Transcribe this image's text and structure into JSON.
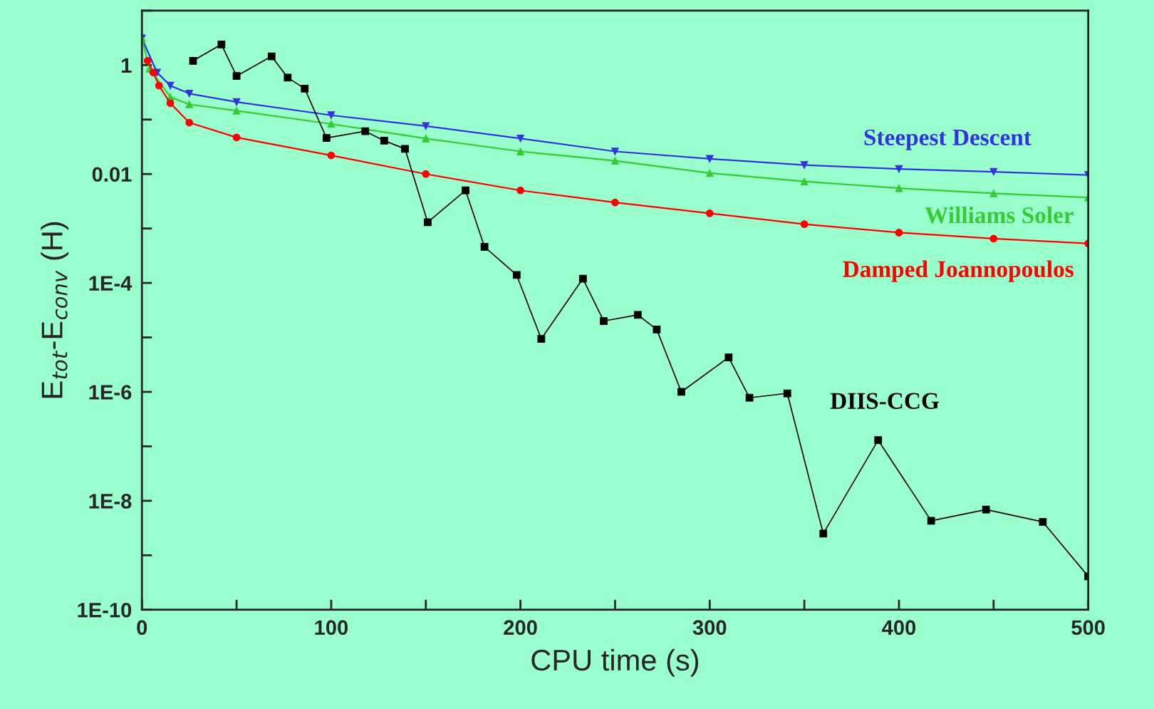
{
  "chart_data": {
    "type": "line",
    "xlabel": "CPU time (s)",
    "ylabel": "E$_{tot}$-E$_{conv}$ (H)",
    "log": "y",
    "grid": false,
    "legend": false,
    "xlim": [
      0,
      500
    ],
    "ylim": [
      1e-10,
      10
    ],
    "xticks": [
      0,
      {
        "value": 50,
        "label": null
      },
      100,
      {
        "value": 150,
        "label": null
      },
      200,
      {
        "value": 250,
        "label": null
      },
      300,
      {
        "value": 350,
        "label": null
      },
      400,
      {
        "value": 450,
        "label": null
      },
      500
    ],
    "yticks": [
      {
        "value": 1e-10,
        "label": "1E-10"
      },
      {
        "value": 1e-09,
        "label": null
      },
      {
        "value": 1e-08,
        "label": "1E-8"
      },
      {
        "value": 1e-07,
        "label": null
      },
      {
        "value": 1e-06,
        "label": "1E-6"
      },
      {
        "value": 1e-05,
        "label": null
      },
      {
        "value": 0.0001,
        "label": "1E-4"
      },
      {
        "value": 0.001,
        "label": null
      },
      0.01,
      {
        "value": 0.1,
        "label": null
      },
      1,
      {
        "value": 10,
        "label": null
      }
    ],
    "series": [
      {
        "name": "Steepest Descent",
        "color": "#3333dd",
        "marker": "triangle_down",
        "x": [
          0,
          8,
          15,
          25,
          50,
          100,
          150,
          200,
          250,
          300,
          350,
          400,
          450,
          500
        ],
        "values": [
          3.1,
          0.73,
          0.42,
          0.3,
          0.21,
          0.12,
          0.076,
          0.045,
          0.026,
          0.019,
          0.0146,
          0.0124,
          0.011,
          0.0096
        ]
      },
      {
        "name": "Williams Soler",
        "color": "#33cc33",
        "marker": "triangle",
        "x": [
          0,
          4,
          15,
          25,
          50,
          100,
          150,
          200,
          250,
          300,
          350,
          400,
          450,
          500
        ],
        "values": [
          3.1,
          0.86,
          0.26,
          0.19,
          0.145,
          0.083,
          0.045,
          0.026,
          0.0175,
          0.0104,
          0.0073,
          0.0055,
          0.0044,
          0.0037
        ]
      },
      {
        "name": "Damped Joannopoulos",
        "color": "#ff0000",
        "marker": "circle",
        "x": [
          3,
          6,
          9,
          15,
          25,
          50,
          100,
          150,
          200,
          250,
          300,
          350,
          400,
          450,
          500
        ],
        "values": [
          1.2,
          0.73,
          0.42,
          0.2,
          0.088,
          0.047,
          0.022,
          0.01,
          0.005,
          0.003,
          0.0019,
          0.0012,
          0.00084,
          0.00065,
          0.00053
        ]
      },
      {
        "name": "DIIS-CCG",
        "color": "#000000",
        "marker": "square",
        "x": [
          27,
          42,
          50,
          68.5,
          77,
          86,
          97.5,
          118,
          128,
          139,
          151,
          171,
          181,
          198,
          211,
          233,
          244,
          262,
          272,
          285,
          310,
          321,
          341,
          360,
          389,
          417,
          446,
          476,
          500
        ],
        "values": [
          1.2,
          2.4,
          0.63,
          1.45,
          0.59,
          0.37,
          0.046,
          0.061,
          0.041,
          0.029,
          0.0013,
          0.005,
          0.00046,
          0.00014,
          9.4e-06,
          0.00012,
          2e-05,
          2.6e-05,
          1.4e-05,
          1e-06,
          4.3e-06,
          7.8e-07,
          9.4e-07,
          2.5e-09,
          1.3e-07,
          4.3e-09,
          6.9e-09,
          4.1e-09,
          4.1e-10
        ]
      }
    ]
  }
}
